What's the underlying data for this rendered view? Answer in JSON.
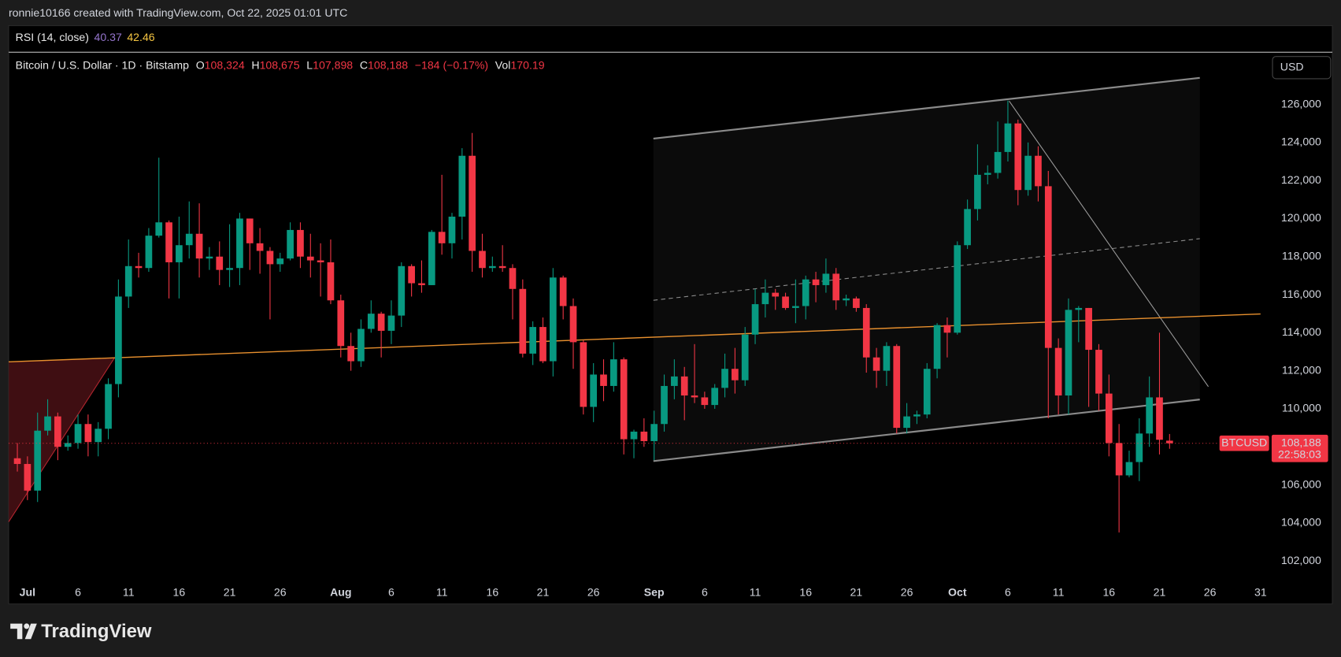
{
  "header": {
    "attribution": "ronnie10166 created with TradingView.com, Oct 22, 2025 01:01 UTC",
    "rsi": {
      "label": "RSI (14, close)",
      "value1": "40.37",
      "value2": "42.46"
    },
    "symbol": {
      "title": "Bitcoin / U.S. Dollar · 1D · Bitstamp",
      "o_label": "O",
      "open": "108,324",
      "h_label": "H",
      "high": "108,675",
      "l_label": "L",
      "low": "107,898",
      "c_label": "C",
      "close": "108,188",
      "change": "−184 (−0.17%)",
      "vol_label": "Vol",
      "volume": "170.19"
    },
    "currency": "USD",
    "brand": "TradingView"
  },
  "chart_data": {
    "type": "candlestick",
    "symbol": "BTCUSD",
    "timer": "22:58:03",
    "last_price": {
      "value": 108188,
      "label": "108,188"
    },
    "up_color": "#089981",
    "down_color": "#f23645",
    "grid": false,
    "ylim": [
      101000,
      128700
    ],
    "yticks": [
      {
        "value": 102000,
        "label": "102,000"
      },
      {
        "value": 104000,
        "label": "104,000"
      },
      {
        "value": 106000,
        "label": "106,000"
      },
      {
        "value": 108000,
        "label": "108,000"
      },
      {
        "value": 110000,
        "label": "110,000"
      },
      {
        "value": 112000,
        "label": "112,000"
      },
      {
        "value": 114000,
        "label": "114,000"
      },
      {
        "value": 116000,
        "label": "116,000"
      },
      {
        "value": 118000,
        "label": "118,000"
      },
      {
        "value": 120000,
        "label": "120,000"
      },
      {
        "value": 122000,
        "label": "122,000"
      },
      {
        "value": 124000,
        "label": "124,000"
      },
      {
        "value": 126000,
        "label": "126,000"
      }
    ],
    "xticks": [
      {
        "value": "Jul 1",
        "label": "Jul"
      },
      {
        "value": "Jul 6",
        "label": "6"
      },
      {
        "value": "Jul 11",
        "label": "11"
      },
      {
        "value": "Jul 16",
        "label": "16"
      },
      {
        "value": "Jul 21",
        "label": "21"
      },
      {
        "value": "Jul 26",
        "label": "26"
      },
      {
        "value": "Aug 1",
        "label": "Aug"
      },
      {
        "value": "Aug 6",
        "label": "6"
      },
      {
        "value": "Aug 11",
        "label": "11"
      },
      {
        "value": "Aug 16",
        "label": "16"
      },
      {
        "value": "Aug 21",
        "label": "21"
      },
      {
        "value": "Aug 26",
        "label": "26"
      },
      {
        "value": "Sep 1",
        "label": "Sep"
      },
      {
        "value": "Sep 6",
        "label": "6"
      },
      {
        "value": "Sep 11",
        "label": "11"
      },
      {
        "value": "Sep 16",
        "label": "16"
      },
      {
        "value": "Sep 21",
        "label": "21"
      },
      {
        "value": "Sep 26",
        "label": "26"
      },
      {
        "value": "Oct 1",
        "label": "Oct"
      },
      {
        "value": "Oct 6",
        "label": "6"
      },
      {
        "value": "Oct 11",
        "label": "11"
      },
      {
        "value": "Oct 16",
        "label": "16"
      },
      {
        "value": "Oct 21",
        "label": "21"
      },
      {
        "value": "Oct 26",
        "label": "26"
      },
      {
        "value": "Oct 31",
        "label": "31"
      }
    ],
    "x": [
      "Jun 30",
      "Jul 1",
      "Jul 2",
      "Jul 3",
      "Jul 4",
      "Jul 5",
      "Jul 6",
      "Jul 7",
      "Jul 8",
      "Jul 9",
      "Jul 10",
      "Jul 11",
      "Jul 12",
      "Jul 13",
      "Jul 14",
      "Jul 15",
      "Jul 16",
      "Jul 17",
      "Jul 18",
      "Jul 19",
      "Jul 20",
      "Jul 21",
      "Jul 22",
      "Jul 23",
      "Jul 24",
      "Jul 25",
      "Jul 26",
      "Jul 27",
      "Jul 28",
      "Jul 29",
      "Jul 30",
      "Jul 31",
      "Aug 1",
      "Aug 2",
      "Aug 3",
      "Aug 4",
      "Aug 5",
      "Aug 6",
      "Aug 7",
      "Aug 8",
      "Aug 9",
      "Aug 10",
      "Aug 11",
      "Aug 12",
      "Aug 13",
      "Aug 14",
      "Aug 15",
      "Aug 16",
      "Aug 17",
      "Aug 18",
      "Aug 19",
      "Aug 20",
      "Aug 21",
      "Aug 22",
      "Aug 23",
      "Aug 24",
      "Aug 25",
      "Aug 26",
      "Aug 27",
      "Aug 28",
      "Aug 29",
      "Aug 30",
      "Aug 31",
      "Sep 1",
      "Sep 2",
      "Sep 3",
      "Sep 4",
      "Sep 5",
      "Sep 6",
      "Sep 7",
      "Sep 8",
      "Sep 9",
      "Sep 10",
      "Sep 11",
      "Sep 12",
      "Sep 13",
      "Sep 14",
      "Sep 15",
      "Sep 16",
      "Sep 17",
      "Sep 18",
      "Sep 19",
      "Sep 20",
      "Sep 21",
      "Sep 22",
      "Sep 23",
      "Sep 24",
      "Sep 25",
      "Sep 26",
      "Sep 27",
      "Sep 28",
      "Sep 29",
      "Sep 30",
      "Oct 1",
      "Oct 2",
      "Oct 3",
      "Oct 4",
      "Oct 5",
      "Oct 6",
      "Oct 7",
      "Oct 8",
      "Oct 9",
      "Oct 10",
      "Oct 11",
      "Oct 12",
      "Oct 13",
      "Oct 14",
      "Oct 15",
      "Oct 16",
      "Oct 17",
      "Oct 18",
      "Oct 19",
      "Oct 20",
      "Oct 21",
      "Oct 22"
    ],
    "open": [
      107400,
      107100,
      105700,
      108850,
      109600,
      108000,
      108200,
      109200,
      108250,
      108950,
      111300,
      115900,
      117500,
      117400,
      119100,
      119800,
      117700,
      118600,
      119200,
      117900,
      118000,
      117300,
      117400,
      120000,
      118700,
      118300,
      117600,
      117900,
      119400,
      118000,
      117800,
      117700,
      115700,
      113300,
      112500,
      114200,
      115000,
      114100,
      114900,
      117500,
      116600,
      116500,
      119300,
      118700,
      120100,
      123300,
      118300,
      117400,
      117500,
      117400,
      116300,
      112900,
      114300,
      112500,
      116900,
      115400,
      113500,
      110100,
      111800,
      111200,
      112600,
      108400,
      108800,
      108300,
      109200,
      111200,
      111700,
      110700,
      110600,
      110200,
      111100,
      112100,
      111500,
      113900,
      115500,
      116100,
      115900,
      115300,
      115400,
      116800,
      116500,
      117100,
      115700,
      115800,
      115300,
      112700,
      112000,
      113300,
      109000,
      109600,
      109700,
      112100,
      114400,
      114000,
      118600,
      120500,
      122300,
      122400,
      123500,
      125000,
      121500,
      123300,
      121700,
      113200,
      110700,
      115200,
      115300,
      113100,
      110800,
      108200,
      106500,
      107200,
      108700,
      110600,
      108324
    ],
    "high": [
      108200,
      107500,
      109800,
      110500,
      109800,
      108600,
      109700,
      109700,
      109300,
      111600,
      116800,
      118900,
      118200,
      119500,
      123200,
      119900,
      120100,
      120900,
      120800,
      118500,
      118800,
      119700,
      120300,
      120000,
      119500,
      118500,
      118200,
      119800,
      119800,
      119200,
      118700,
      118900,
      116000,
      114000,
      114700,
      115700,
      115100,
      115700,
      117700,
      117600,
      117800,
      119400,
      122300,
      120300,
      123700,
      124500,
      119200,
      118000,
      118600,
      117600,
      116800,
      114600,
      114800,
      117400,
      117000,
      115800,
      113600,
      112400,
      112600,
      113500,
      112700,
      108900,
      109500,
      109900,
      111800,
      112600,
      112200,
      113400,
      110900,
      111300,
      112900,
      113200,
      114300,
      116300,
      116800,
      116300,
      116100,
      116800,
      117000,
      117200,
      117900,
      117400,
      116000,
      115900,
      115500,
      113200,
      113500,
      113400,
      110300,
      109900,
      112400,
      114500,
      114800,
      118800,
      121000,
      123900,
      122800,
      125100,
      126200,
      125200,
      124000,
      123800,
      122500,
      113700,
      115800,
      115400,
      115300,
      113400,
      111800,
      109200,
      107800,
      109500,
      111700,
      114000,
      108675
    ],
    "low": [
      106700,
      105200,
      105100,
      108600,
      107300,
      107800,
      107900,
      107500,
      107500,
      108400,
      110600,
      115300,
      116900,
      117200,
      119000,
      115800,
      115800,
      117900,
      116900,
      117300,
      116500,
      116400,
      116500,
      117300,
      117100,
      114700,
      117200,
      117800,
      117400,
      116900,
      115900,
      115500,
      112700,
      112000,
      112200,
      114000,
      112700,
      113400,
      114300,
      115900,
      116100,
      116500,
      118100,
      117900,
      118900,
      117200,
      116900,
      117200,
      117200,
      114700,
      112700,
      112300,
      112400,
      111700,
      114700,
      112100,
      109700,
      109300,
      110400,
      110900,
      107600,
      107400,
      108000,
      107300,
      108800,
      110500,
      109400,
      110300,
      110000,
      110000,
      110600,
      110800,
      111200,
      113400,
      114800,
      115200,
      115200,
      114500,
      114700,
      115600,
      116100,
      115200,
      115400,
      115100,
      111900,
      111100,
      111200,
      108700,
      108700,
      109200,
      109500,
      111600,
      112700,
      113900,
      118400,
      119900,
      121800,
      122100,
      123000,
      120700,
      121200,
      120900,
      109500,
      109700,
      109700,
      113500,
      110100,
      109900,
      107500,
      103500,
      106400,
      106200,
      108000,
      107600,
      107898
    ],
    "close": [
      107100,
      105700,
      108850,
      109600,
      108000,
      108200,
      109200,
      108250,
      108950,
      111300,
      115900,
      117500,
      117400,
      119100,
      119800,
      117700,
      118600,
      119200,
      117900,
      118000,
      117300,
      117400,
      120000,
      118700,
      118300,
      117600,
      117900,
      119400,
      118000,
      117800,
      117700,
      115700,
      113300,
      112500,
      114200,
      115000,
      114100,
      114900,
      117500,
      116600,
      116500,
      119300,
      118700,
      120100,
      123300,
      118300,
      117400,
      117500,
      117400,
      116300,
      112900,
      114300,
      112500,
      116900,
      115400,
      113500,
      110100,
      111800,
      111200,
      112600,
      108400,
      108800,
      108300,
      109200,
      111200,
      111700,
      110700,
      110600,
      110200,
      111100,
      112100,
      111500,
      113900,
      115500,
      116100,
      115900,
      115300,
      115400,
      116800,
      116500,
      117100,
      115700,
      115800,
      115300,
      112700,
      112000,
      113300,
      109000,
      109600,
      109700,
      112100,
      114400,
      114000,
      118600,
      120500,
      122300,
      122400,
      123500,
      125000,
      121500,
      123300,
      121700,
      113200,
      110700,
      115200,
      115300,
      113100,
      110800,
      108200,
      106500,
      107200,
      108700,
      110600,
      108372,
      108188
    ]
  }
}
